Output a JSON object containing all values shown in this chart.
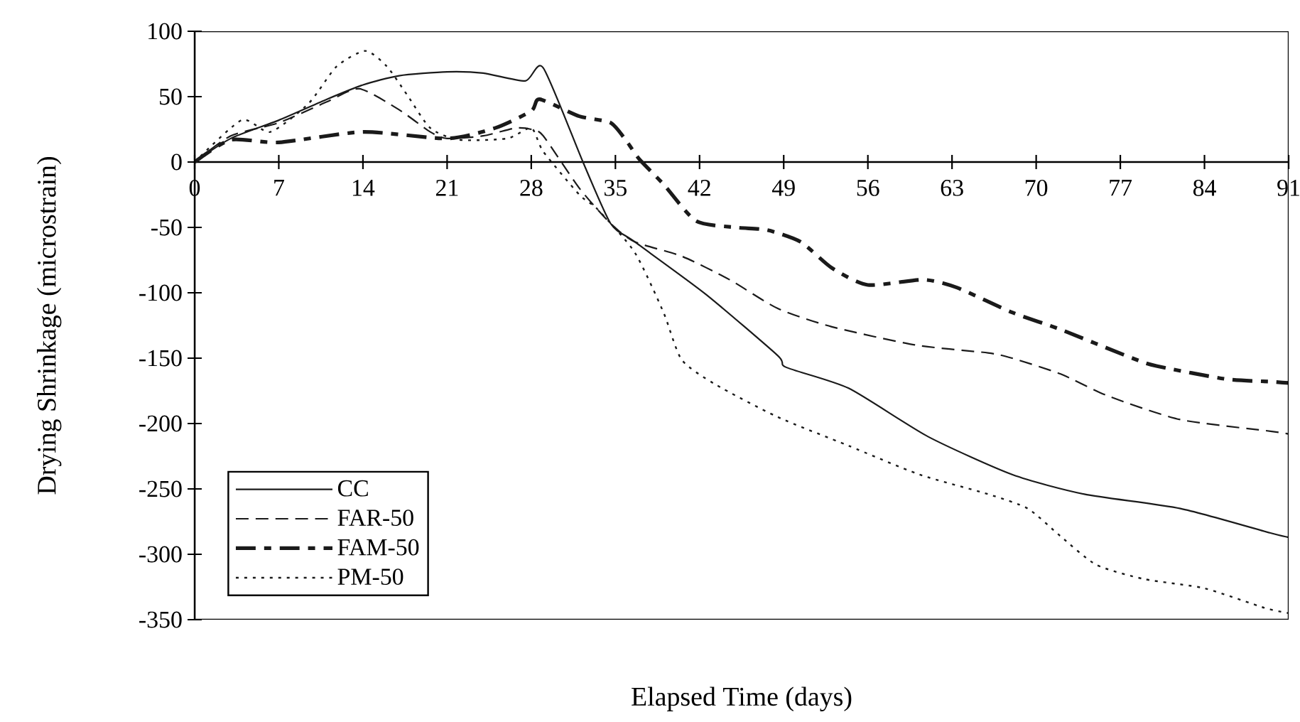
{
  "chart_data": {
    "type": "line",
    "xlabel": "Elapsed Time (days)",
    "ylabel": "Drying Shrinkage (microstrain)",
    "xlim": [
      0,
      91
    ],
    "ylim": [
      -350,
      100
    ],
    "xticks": [
      0,
      7,
      14,
      21,
      28,
      35,
      42,
      49,
      56,
      63,
      70,
      77,
      84,
      91
    ],
    "yticks": [
      -350,
      -300,
      -250,
      -200,
      -150,
      -100,
      -50,
      0,
      50,
      100
    ],
    "legend": "bottom left",
    "grid": false,
    "series": [
      {
        "name": "CC",
        "color": "#1a1a1a",
        "line_style": "solid",
        "x": [
          0,
          3,
          7,
          11,
          14,
          17,
          21,
          24,
          27.5,
          29,
          32.3,
          34.6,
          36.6,
          42.5,
          48.5,
          49.2,
          54.4,
          61,
          68,
          74,
          82,
          89.6,
          91
        ],
        "values": [
          0,
          18,
          32,
          48,
          59,
          66,
          69,
          68,
          62,
          72,
          0,
          -47,
          -61,
          -101,
          -148,
          -157,
          -173,
          -210,
          -239,
          -254,
          -265,
          -284,
          -287
        ]
      },
      {
        "name": "FAR-50",
        "color": "#1a1a1a",
        "line_style": "dashed",
        "x": [
          0,
          3,
          7,
          11,
          13.7,
          17,
          19.6,
          21,
          24,
          26.7,
          28,
          29,
          32,
          34.6,
          36.6,
          40.5,
          44.5,
          48.5,
          53,
          60,
          66,
          68,
          72,
          76,
          82,
          89.6,
          91
        ],
        "values": [
          0,
          20,
          30,
          46,
          56,
          40,
          23,
          18,
          20,
          26,
          25,
          20,
          -20,
          -47,
          -61,
          -72,
          -90,
          -112,
          -126,
          -140,
          -146,
          -150,
          -162,
          -179,
          -197,
          -206,
          -208
        ]
      },
      {
        "name": "FAM-50",
        "color": "#1a1a1a",
        "line_style": "dashdot",
        "x": [
          0,
          3,
          7,
          14,
          21,
          25,
          28,
          28.7,
          32,
          34.6,
          36,
          37,
          39,
          41.7,
          45,
          47.6,
          50.4,
          53,
          56,
          60.6,
          63.4,
          68,
          72,
          78,
          80,
          85.8,
          89.6,
          91
        ],
        "values": [
          0,
          17,
          15,
          23,
          18,
          26,
          39,
          48,
          35,
          30,
          15,
          2,
          -17,
          -45,
          -50,
          -52,
          -61,
          -81,
          -94,
          -90,
          -96,
          -115,
          -128,
          -150,
          -156,
          -166,
          -168,
          -169
        ]
      },
      {
        "name": "PM-50",
        "color": "#1a1a1a",
        "line_style": "dotted",
        "x": [
          0,
          3.9,
          6.3,
          9.5,
          11.8,
          14.2,
          16,
          17.7,
          19.6,
          22,
          26,
          28,
          29,
          32,
          33.5,
          36.6,
          39,
          40.5,
          43.3,
          48.5,
          54.4,
          60.3,
          66,
          69.3,
          72,
          75,
          79,
          84,
          89,
          91
        ],
        "values": [
          0,
          32,
          23,
          45,
          73,
          85,
          73,
          51,
          26,
          17,
          18,
          26,
          8,
          -25,
          -36,
          -69,
          -115,
          -151,
          -170,
          -195,
          -217,
          -239,
          -254,
          -265,
          -286,
          -308,
          -319,
          -326,
          -341,
          -345
        ]
      }
    ]
  }
}
